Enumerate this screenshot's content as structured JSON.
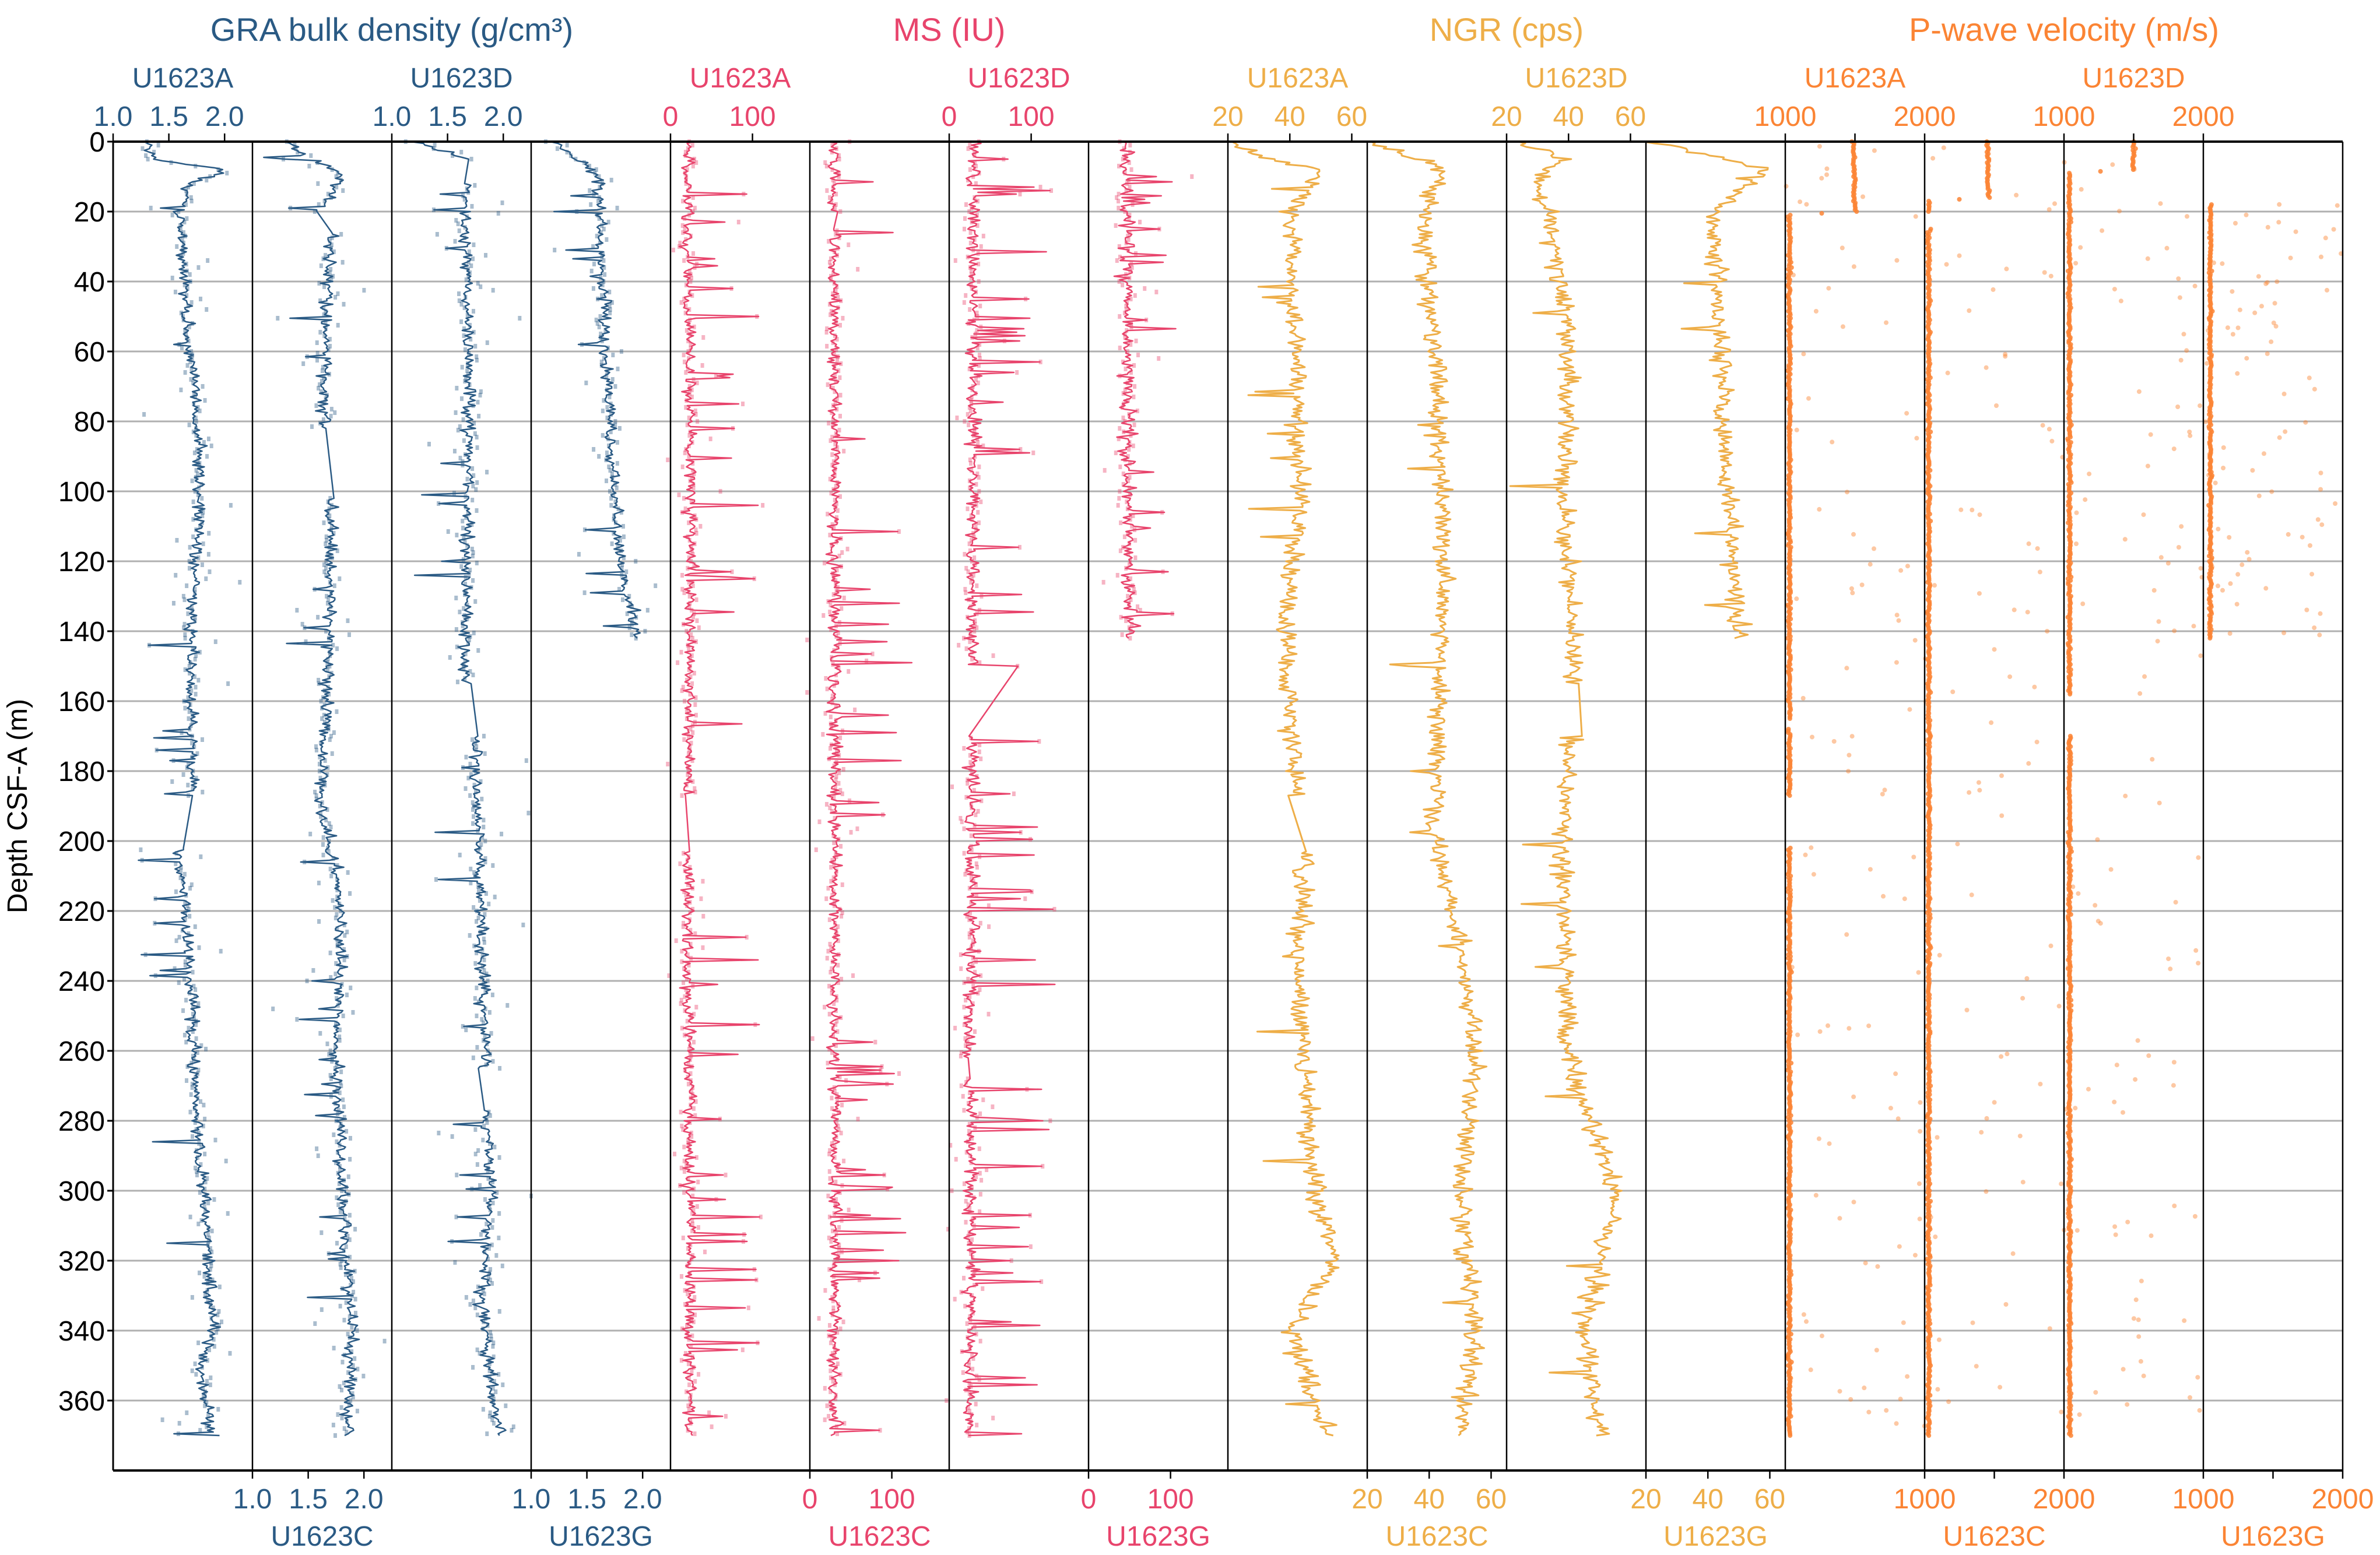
{
  "chart_data": {
    "type": "scatter",
    "ylabel": "Depth CSF-A (m)",
    "ylim": [
      0,
      380
    ],
    "y_inverted": true,
    "yticks": [
      0,
      20,
      40,
      60,
      80,
      100,
      120,
      140,
      160,
      180,
      200,
      220,
      240,
      260,
      280,
      300,
      320,
      340,
      360
    ],
    "yticklabels": [
      "0",
      "20",
      "40",
      "60",
      "80",
      "100",
      "120",
      "140",
      "160",
      "180",
      "200",
      "220",
      "240",
      "260",
      "280",
      "300",
      "320",
      "340",
      "360"
    ],
    "grid": "horizontal",
    "groups": [
      {
        "title": "GRA bulk density (g/cm³)",
        "color": "#2a5a84",
        "xlim": [
          1.0,
          2.25
        ],
        "xticks": [
          1.0,
          1.5,
          2.0
        ],
        "xticklabels": [
          "1.0",
          "1.5",
          "2.0"
        ],
        "style": "line+scatter",
        "holes": [
          {
            "hole": "U1623A",
            "axis": "top",
            "depth_range": [
              0,
              370
            ],
            "gaps": [
              [
                187,
                202
              ]
            ],
            "noise": 0.06,
            "scatter": 0.18,
            "spike_rate": 0.03,
            "spike_size": -0.45,
            "profile": [
              [
                0,
                1.3
              ],
              [
                5,
                1.35
              ],
              [
                8,
                2.0
              ],
              [
                12,
                1.7
              ],
              [
                20,
                1.6
              ],
              [
                50,
                1.65
              ],
              [
                80,
                1.75
              ],
              [
                100,
                1.78
              ],
              [
                140,
                1.7
              ],
              [
                160,
                1.7
              ],
              [
                186,
                1.72
              ],
              [
                203,
                1.6
              ],
              [
                240,
                1.7
              ],
              [
                280,
                1.75
              ],
              [
                300,
                1.8
              ],
              [
                320,
                1.85
              ],
              [
                340,
                1.9
              ],
              [
                350,
                1.78
              ],
              [
                370,
                1.9
              ]
            ]
          },
          {
            "hole": "U1623C",
            "axis": "bottom",
            "depth_range": [
              0,
              370
            ],
            "gaps": [
              [
                20,
                26
              ],
              [
                82,
                102
              ]
            ],
            "noise": 0.06,
            "scatter": 0.18,
            "spike_rate": 0.03,
            "spike_size": -0.4,
            "profile": [
              [
                0,
                1.3
              ],
              [
                10,
                1.8
              ],
              [
                20,
                1.6
              ],
              [
                26,
                1.7
              ],
              [
                60,
                1.65
              ],
              [
                80,
                1.65
              ],
              [
                102,
                1.7
              ],
              [
                140,
                1.7
              ],
              [
                190,
                1.62
              ],
              [
                220,
                1.8
              ],
              [
                260,
                1.75
              ],
              [
                300,
                1.8
              ],
              [
                320,
                1.85
              ],
              [
                340,
                1.9
              ],
              [
                370,
                1.85
              ]
            ]
          },
          {
            "hole": "U1623D",
            "axis": "top",
            "depth_range": [
              0,
              370
            ],
            "gaps": [
              [
                5,
                12
              ],
              [
                155,
                170
              ],
              [
                265,
                277
              ]
            ],
            "noise": 0.06,
            "scatter": 0.2,
            "spike_rate": 0.035,
            "spike_size": -0.5,
            "profile": [
              [
                0,
                1.2
              ],
              [
                5,
                1.7
              ],
              [
                12,
                1.7
              ],
              [
                20,
                1.65
              ],
              [
                80,
                1.7
              ],
              [
                150,
                1.65
              ],
              [
                170,
                1.75
              ],
              [
                220,
                1.8
              ],
              [
                280,
                1.85
              ],
              [
                300,
                1.9
              ],
              [
                330,
                1.8
              ],
              [
                360,
                1.9
              ],
              [
                370,
                2.0
              ]
            ]
          },
          {
            "hole": "U1623G",
            "axis": "bottom",
            "depth_range": [
              0,
              142
            ],
            "gaps": [],
            "noise": 0.06,
            "scatter": 0.16,
            "spike_rate": 0.04,
            "spike_size": -0.4,
            "profile": [
              [
                0,
                1.2
              ],
              [
                10,
                1.6
              ],
              [
                40,
                1.65
              ],
              [
                80,
                1.7
              ],
              [
                120,
                1.8
              ],
              [
                142,
                1.95
              ]
            ]
          }
        ]
      },
      {
        "title": "MS (IU)",
        "color": "#e8446c",
        "xlim": [
          0,
          170
        ],
        "xticks": [
          0,
          100
        ],
        "xticklabels": [
          "0",
          "100"
        ],
        "style": "line+scatter",
        "holes": [
          {
            "hole": "U1623A",
            "axis": "top",
            "depth_range": [
              0,
              370
            ],
            "gaps": [
              [
                187,
                203
              ]
            ],
            "noise": 8,
            "scatter": 15,
            "spike_rate": 0.05,
            "spike_size": 90,
            "profile": [
              [
                0,
                20
              ],
              [
                100,
                25
              ],
              [
                200,
                20
              ],
              [
                370,
                25
              ]
            ]
          },
          {
            "hole": "U1623C",
            "axis": "bottom",
            "depth_range": [
              0,
              370
            ],
            "gaps": [
              [
                20,
                25
              ]
            ],
            "noise": 8,
            "scatter": 15,
            "spike_rate": 0.05,
            "spike_size": 90,
            "profile": [
              [
                0,
                30
              ],
              [
                370,
                30
              ]
            ]
          },
          {
            "hole": "U1623D",
            "axis": "top",
            "depth_range": [
              0,
              370
            ],
            "gaps": [
              [
                150,
                170
              ],
              [
                262,
                268
              ]
            ],
            "noise": 9,
            "scatter": 16,
            "spike_rate": 0.06,
            "spike_size": 100,
            "profile": [
              [
                0,
                30
              ],
              [
                370,
                25
              ]
            ]
          },
          {
            "hole": "U1623G",
            "axis": "bottom",
            "depth_range": [
              0,
              142
            ],
            "gaps": [],
            "noise": 10,
            "scatter": 18,
            "spike_rate": 0.05,
            "spike_size": 60,
            "profile": [
              [
                0,
                45
              ],
              [
                142,
                50
              ]
            ]
          }
        ]
      },
      {
        "title": "NGR (cps)",
        "color": "#eeae48",
        "xlim": [
          20,
          65
        ],
        "xticks": [
          20,
          40,
          60
        ],
        "xticklabels": [
          "20",
          "40",
          "60"
        ],
        "style": "line",
        "holes": [
          {
            "hole": "U1623A",
            "axis": "top",
            "depth_range": [
              0,
              370
            ],
            "gaps": [
              [
                187,
                203
              ]
            ],
            "noise": 3.5,
            "scatter": 1,
            "spike_rate": 0.02,
            "spike_size": -15,
            "profile": [
              [
                0,
                22
              ],
              [
                5,
                33
              ],
              [
                8,
                50
              ],
              [
                20,
                40
              ],
              [
                60,
                42
              ],
              [
                100,
                44
              ],
              [
                140,
                38
              ],
              [
                186,
                42
              ],
              [
                203,
                45
              ],
              [
                240,
                42
              ],
              [
                300,
                48
              ],
              [
                320,
                55
              ],
              [
                340,
                40
              ],
              [
                360,
                48
              ],
              [
                370,
                52
              ]
            ]
          },
          {
            "hole": "U1623C",
            "axis": "bottom",
            "depth_range": [
              0,
              370
            ],
            "gaps": [],
            "noise": 3.5,
            "scatter": 1,
            "spike_rate": 0.02,
            "spike_size": -15,
            "profile": [
              [
                0,
                22
              ],
              [
                8,
                45
              ],
              [
                20,
                38
              ],
              [
                100,
                45
              ],
              [
                200,
                42
              ],
              [
                230,
                50
              ],
              [
                260,
                55
              ],
              [
                300,
                50
              ],
              [
                340,
                55
              ],
              [
                370,
                50
              ]
            ]
          },
          {
            "hole": "U1623D",
            "axis": "top",
            "depth_range": [
              0,
              370
            ],
            "gaps": [
              [
                155,
                170
              ]
            ],
            "noise": 3.5,
            "scatter": 1,
            "spike_rate": 0.02,
            "spike_size": -15,
            "profile": [
              [
                0,
                22
              ],
              [
                5,
                38
              ],
              [
                10,
                30
              ],
              [
                50,
                40
              ],
              [
                100,
                38
              ],
              [
                150,
                42
              ],
              [
                200,
                38
              ],
              [
                260,
                40
              ],
              [
                300,
                55
              ],
              [
                340,
                45
              ],
              [
                370,
                50
              ]
            ]
          },
          {
            "hole": "U1623G",
            "axis": "bottom",
            "depth_range": [
              0,
              142
            ],
            "gaps": [],
            "noise": 3.5,
            "scatter": 1,
            "spike_rate": 0.02,
            "spike_size": -12,
            "profile": [
              [
                0,
                22
              ],
              [
                8,
                60
              ],
              [
                20,
                42
              ],
              [
                80,
                45
              ],
              [
                142,
                50
              ]
            ]
          }
        ]
      },
      {
        "title": "P-wave velocity (m/s)",
        "color": "#fb8434",
        "xlim": [
          1000,
          2000
        ],
        "xticks": [
          1000,
          1500,
          2000
        ],
        "xticklabels": [
          "1000",
          "",
          "2000"
        ],
        "style": "scatter",
        "holes": [
          {
            "hole": "U1623A",
            "axis": "top",
            "depth_range": [
              0,
              370
            ],
            "gaps": [
              [
                165,
                168
              ],
              [
                187,
                202
              ]
            ],
            "noise": 10,
            "scatter": 1000,
            "spike_rate": 0.12,
            "spike_size": 0,
            "profile": [
              [
                0,
                1490
              ],
              [
                20,
                1500
              ],
              [
                21,
                1030
              ],
              [
                370,
                1030
              ]
            ]
          },
          {
            "hole": "U1623C",
            "axis": "bottom",
            "depth_range": [
              0,
              370
            ],
            "gaps": [
              [
                20,
                25
              ]
            ],
            "noise": 10,
            "scatter": 1000,
            "spike_rate": 0.1,
            "spike_size": 0,
            "profile": [
              [
                0,
                1450
              ],
              [
                16,
                1460
              ],
              [
                17,
                1030
              ],
              [
                370,
                1030
              ]
            ]
          },
          {
            "hole": "U1623D",
            "axis": "top",
            "depth_range": [
              0,
              370
            ],
            "gaps": [
              [
                158,
                170
              ]
            ],
            "noise": 10,
            "scatter": 1000,
            "spike_rate": 0.14,
            "spike_size": 0,
            "profile": [
              [
                0,
                1500
              ],
              [
                8,
                1500
              ],
              [
                9,
                1040
              ],
              [
                370,
                1040
              ]
            ]
          },
          {
            "hole": "U1623G",
            "axis": "bottom",
            "depth_range": [
              18,
              142
            ],
            "gaps": [],
            "noise": 10,
            "scatter": 1000,
            "spike_rate": 0.3,
            "spike_size": 0,
            "profile": [
              [
                18,
                1050
              ],
              [
                142,
                1050
              ]
            ]
          }
        ]
      }
    ]
  }
}
